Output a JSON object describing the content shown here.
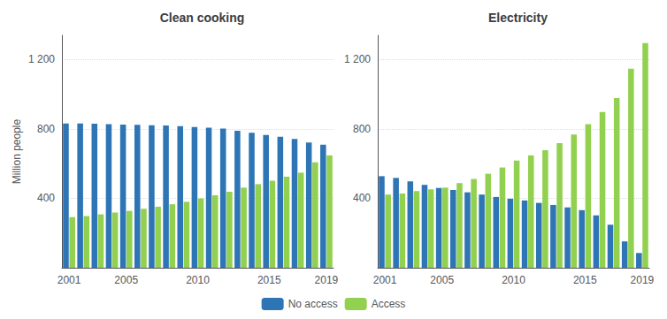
{
  "chart_data": [
    {
      "type": "bar",
      "title": "Clean cooking",
      "ylabel": "Million people",
      "categories": [
        "2001",
        null,
        null,
        null,
        "2005",
        null,
        null,
        null,
        null,
        "2010",
        null,
        null,
        null,
        null,
        "2015",
        null,
        null,
        null,
        "2019"
      ],
      "series": [
        {
          "name": "No access",
          "color": "#2E75B6",
          "values": [
            832,
            832,
            830,
            828,
            826,
            824,
            822,
            820,
            816,
            812,
            808,
            802,
            790,
            778,
            765,
            755,
            742,
            722,
            710
          ]
        },
        {
          "name": "Access",
          "color": "#92D050",
          "values": [
            292,
            298,
            308,
            318,
            328,
            340,
            352,
            366,
            380,
            400,
            418,
            438,
            462,
            482,
            502,
            525,
            548,
            608,
            648
          ]
        }
      ],
      "ylim": [
        0,
        1340
      ],
      "yticks": [
        400,
        800,
        {
          "value": 1200,
          "label": "1 200"
        }
      ],
      "grid": true,
      "legend": "bottom"
    },
    {
      "type": "bar",
      "title": "Electricity",
      "categories": [
        "2001",
        null,
        null,
        null,
        "2005",
        null,
        null,
        null,
        null,
        "2010",
        null,
        null,
        null,
        null,
        "2015",
        null,
        null,
        null,
        "2019"
      ],
      "series": [
        {
          "name": "No access",
          "color": "#2E75B6",
          "values": [
            528,
            518,
            498,
            478,
            460,
            448,
            435,
            422,
            408,
            398,
            388,
            374,
            362,
            348,
            332,
            302,
            248,
            152,
            85
          ]
        },
        {
          "name": "Access",
          "color": "#92D050",
          "values": [
            422,
            428,
            442,
            452,
            462,
            488,
            512,
            542,
            578,
            618,
            648,
            678,
            718,
            768,
            828,
            898,
            978,
            1148,
            1295
          ]
        }
      ],
      "ylim": [
        0,
        1340
      ],
      "yticks": [
        400,
        800,
        {
          "value": 1200,
          "label": "1 200"
        }
      ],
      "grid": true,
      "legend": "bottom"
    }
  ]
}
